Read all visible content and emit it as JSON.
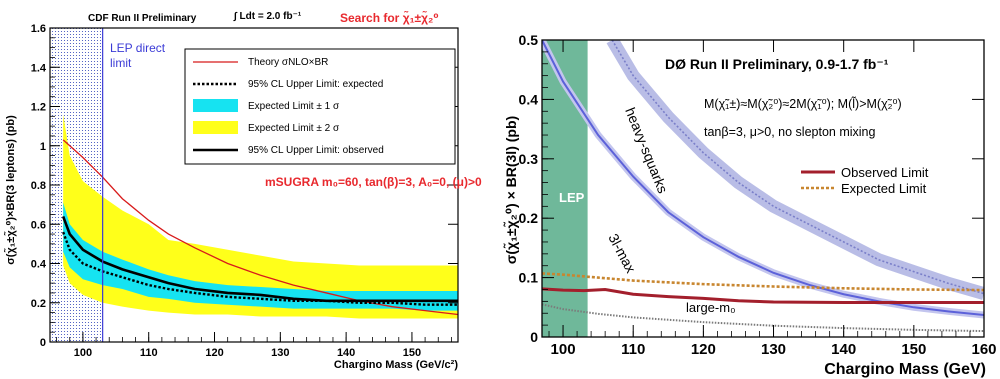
{
  "left": {
    "header_left": "CDF Run II Preliminary",
    "header_mid": "∫ Ldt = 2.0 fb⁻¹",
    "header_right": "Search for χ̃₁±χ̃₂⁰",
    "header_right_color": "#e8292e",
    "lep_label_1": "LEP direct",
    "lep_label_2": "limit",
    "lep_color": "#3b3bd6",
    "msugra": "mSUGRA m₀=60, tan(β)=3, A₀=0, (μ)>0",
    "legend": [
      "Theory σNLO×BR",
      "95% CL Upper Limit: expected",
      "Expected Limit ± 1 σ",
      "Expected Limit ± 2 σ",
      "95% CL Upper Limit: observed"
    ]
  },
  "right": {
    "title": "DØ Run II Preliminary, 0.9-1.7 fb⁻¹",
    "line1": "M(χ̃₁±)≈M(χ̃₂⁰)≈2M(χ̃₁⁰); M(l̃)>M(χ̃₂⁰)",
    "line2": "tanβ=3, μ>0, no slepton mixing",
    "lep": "LEP",
    "band_heavy": "heavy-squarks",
    "band_3l": "3l-max",
    "band_m0": "large-m₀",
    "legend": [
      "Observed Limit",
      "Expected Limit"
    ]
  },
  "chart_data": [
    {
      "type": "line",
      "xlabel": "Chargino Mass (GeV/c²)",
      "ylabel": "σ(χ̃₁±χ̃₂⁰)×BR(3 leptons) (pb)",
      "xlim": [
        95,
        157
      ],
      "ylim": [
        0,
        1.6
      ],
      "xticks": [
        100,
        110,
        120,
        130,
        140,
        150
      ],
      "yticks": [
        0,
        0.2,
        0.4,
        0.6,
        0.8,
        1,
        1.2,
        1.4,
        1.6
      ],
      "x": [
        97,
        98,
        100,
        103,
        106,
        110,
        113,
        117,
        122,
        127,
        132,
        137,
        142,
        147,
        152,
        157
      ],
      "series": [
        {
          "name": "Theory σNLO×BR",
          "color": "#d81b1b",
          "values": [
            1.03,
            1.0,
            0.94,
            0.84,
            0.73,
            0.62,
            0.55,
            0.48,
            0.4,
            0.34,
            0.29,
            0.25,
            0.21,
            0.18,
            0.16,
            0.14
          ]
        },
        {
          "name": "95% CL Upper Limit: expected",
          "color": "#000000",
          "values": [
            0.56,
            0.47,
            0.4,
            0.36,
            0.33,
            0.29,
            0.27,
            0.25,
            0.23,
            0.22,
            0.21,
            0.21,
            0.2,
            0.2,
            0.19,
            0.19
          ]
        },
        {
          "name": "95% CL Upper Limit: observed",
          "color": "#000000",
          "values": [
            0.64,
            0.55,
            0.47,
            0.41,
            0.37,
            0.33,
            0.3,
            0.27,
            0.25,
            0.24,
            0.22,
            0.21,
            0.21,
            0.21,
            0.21,
            0.21
          ]
        },
        {
          "name": "Expected Limit ± 1 σ (upper)",
          "color": "#16e3f1",
          "values": [
            0.71,
            0.6,
            0.52,
            0.46,
            0.42,
            0.37,
            0.34,
            0.31,
            0.29,
            0.28,
            0.27,
            0.26,
            0.26,
            0.26,
            0.26,
            0.26
          ]
        },
        {
          "name": "Expected Limit ± 1 σ (lower)",
          "color": "#16e3f1",
          "values": [
            0.46,
            0.38,
            0.32,
            0.29,
            0.27,
            0.23,
            0.22,
            0.2,
            0.19,
            0.18,
            0.17,
            0.17,
            0.17,
            0.17,
            0.16,
            0.16
          ]
        },
        {
          "name": "Expected Limit ± 2 σ (upper)",
          "color": "#ffff1a",
          "values": [
            1.16,
            0.95,
            0.82,
            0.74,
            0.67,
            0.6,
            0.52,
            0.5,
            0.47,
            0.44,
            0.41,
            0.4,
            0.39,
            0.39,
            0.39,
            0.39
          ]
        },
        {
          "name": "Expected Limit ± 2 σ (lower)",
          "color": "#ffff1a",
          "values": [
            0.39,
            0.3,
            0.24,
            0.2,
            0.18,
            0.16,
            0.15,
            0.14,
            0.14,
            0.13,
            0.13,
            0.13,
            0.12,
            0.12,
            0.12,
            0.12
          ]
        }
      ]
    },
    {
      "type": "line",
      "xlabel": "Chargino Mass (GeV)",
      "ylabel": "σ(χ̃₁±χ̃₂⁰) × BR(3l) (pb)",
      "xlim": [
        97,
        160
      ],
      "ylim": [
        0,
        0.5
      ],
      "xticks": [
        100,
        110,
        120,
        130,
        140,
        150,
        160
      ],
      "yticks": [
        0,
        0.1,
        0.2,
        0.3,
        0.4,
        0.5
      ],
      "lep_excluded": [
        97,
        103.5
      ],
      "series": [
        {
          "name": "Observed Limit",
          "color": "#a31f2c",
          "x": [
            97,
            100,
            103,
            106,
            110,
            115,
            120,
            125,
            130,
            140,
            150,
            160
          ],
          "values": [
            0.081,
            0.079,
            0.078,
            0.08,
            0.072,
            0.068,
            0.065,
            0.061,
            0.059,
            0.058,
            0.058,
            0.058
          ]
        },
        {
          "name": "Expected Limit",
          "color": "#c8862f",
          "x": [
            97,
            100,
            105,
            110,
            115,
            120,
            130,
            140,
            150,
            160
          ],
          "values": [
            0.107,
            0.105,
            0.1,
            0.095,
            0.092,
            0.089,
            0.085,
            0.082,
            0.08,
            0.079
          ]
        },
        {
          "name": "heavy-squarks",
          "color": "#7a7fc9",
          "x": [
            107,
            110,
            115,
            120,
            125,
            130,
            135,
            140,
            145,
            150,
            155,
            160
          ],
          "values": [
            0.5,
            0.44,
            0.37,
            0.31,
            0.26,
            0.22,
            0.19,
            0.16,
            0.13,
            0.11,
            0.09,
            0.073
          ]
        },
        {
          "name": "3l-max",
          "color": "#5c61d9",
          "x": [
            97,
            100,
            105,
            110,
            115,
            120,
            125,
            130,
            135,
            140,
            145,
            150,
            155,
            160
          ],
          "values": [
            0.5,
            0.43,
            0.34,
            0.27,
            0.21,
            0.168,
            0.135,
            0.108,
            0.088,
            0.072,
            0.06,
            0.05,
            0.043,
            0.037
          ]
        },
        {
          "name": "large-m0",
          "color": "#7b7b7b",
          "x": [
            97,
            100,
            105,
            110,
            120,
            130,
            140,
            150,
            160
          ],
          "values": [
            0.055,
            0.047,
            0.039,
            0.033,
            0.025,
            0.019,
            0.015,
            0.012,
            0.01
          ]
        }
      ]
    }
  ]
}
